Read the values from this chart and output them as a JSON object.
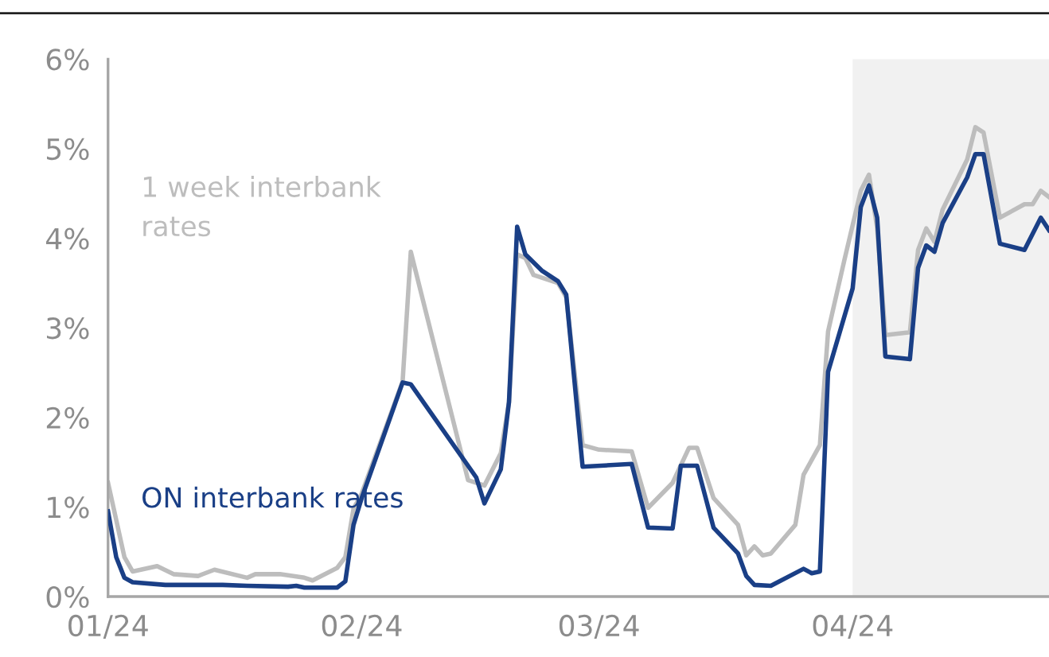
{
  "chart_data": {
    "type": "line",
    "xlim": [
      "2024-01-01",
      "2024-04-25"
    ],
    "ylim": [
      0,
      6
    ],
    "xticks": [
      {
        "value": "2024-01-01",
        "label": "01/24"
      },
      {
        "value": "2024-02-01",
        "label": "02/24"
      },
      {
        "value": "2024-03-01",
        "label": "03/24"
      },
      {
        "value": "2024-04-01",
        "label": "04/24"
      }
    ],
    "yticks": [
      {
        "value": 0,
        "label": "0%"
      },
      {
        "value": 1,
        "label": "1%"
      },
      {
        "value": 2,
        "label": "2%"
      },
      {
        "value": 3,
        "label": "3%"
      },
      {
        "value": 4,
        "label": "4%"
      },
      {
        "value": 5,
        "label": "5%"
      },
      {
        "value": 6,
        "label": "6%"
      }
    ],
    "grid": false,
    "legend": false,
    "marker": "none",
    "line_style": "solid",
    "bands": [
      {
        "axis": "x",
        "from": "2024-04-01",
        "to": "2024-04-25",
        "color": "#f1f1f1"
      }
    ],
    "series": [
      {
        "name": "1 week interbank rates",
        "color": "#bdbdbd",
        "x": [
          "2024-01-01",
          "2024-01-03",
          "2024-01-04",
          "2024-01-07",
          "2024-01-09",
          "2024-01-12",
          "2024-01-14",
          "2024-01-18",
          "2024-01-19",
          "2024-01-22",
          "2024-01-25",
          "2024-01-26",
          "2024-01-29",
          "2024-01-30",
          "2024-01-31",
          "2024-02-01",
          "2024-02-06",
          "2024-02-07",
          "2024-02-14",
          "2024-02-16",
          "2024-02-18",
          "2024-02-19",
          "2024-02-20",
          "2024-02-21",
          "2024-02-22",
          "2024-02-25",
          "2024-02-26",
          "2024-02-28",
          "2024-03-01",
          "2024-03-05",
          "2024-03-07",
          "2024-03-10",
          "2024-03-12",
          "2024-03-13",
          "2024-03-15",
          "2024-03-18",
          "2024-03-19",
          "2024-03-20",
          "2024-03-21",
          "2024-03-22",
          "2024-03-25",
          "2024-03-26",
          "2024-03-28",
          "2024-03-29",
          "2024-03-31",
          "2024-04-02",
          "2024-04-03",
          "2024-04-04",
          "2024-04-05",
          "2024-04-08",
          "2024-04-09",
          "2024-04-10",
          "2024-04-11",
          "2024-04-12",
          "2024-04-15",
          "2024-04-16",
          "2024-04-17",
          "2024-04-19",
          "2024-04-22",
          "2024-04-23",
          "2024-04-24",
          "2024-04-25"
        ],
        "values": [
          1.27,
          0.44,
          0.28,
          0.34,
          0.25,
          0.23,
          0.3,
          0.21,
          0.25,
          0.25,
          0.21,
          0.18,
          0.32,
          0.44,
          0.98,
          1.15,
          2.4,
          3.85,
          1.3,
          1.24,
          1.6,
          2.17,
          3.82,
          3.78,
          3.59,
          3.5,
          3.34,
          1.69,
          1.64,
          1.62,
          0.99,
          1.27,
          1.66,
          1.66,
          1.1,
          0.8,
          0.46,
          0.56,
          0.46,
          0.48,
          0.8,
          1.36,
          1.69,
          2.96,
          3.76,
          4.53,
          4.71,
          4.11,
          2.92,
          2.95,
          3.87,
          4.11,
          3.96,
          4.32,
          4.88,
          5.24,
          5.18,
          4.23,
          4.38,
          4.38,
          4.53,
          4.46
        ]
      },
      {
        "name": "ON interbank rates",
        "color": "#1a3f86",
        "x": [
          "2024-01-01",
          "2024-01-02",
          "2024-01-03",
          "2024-01-04",
          "2024-01-08",
          "2024-01-15",
          "2024-01-18",
          "2024-01-23",
          "2024-01-24",
          "2024-01-25",
          "2024-01-29",
          "2024-01-30",
          "2024-01-31",
          "2024-02-01",
          "2024-02-06",
          "2024-02-07",
          "2024-02-15",
          "2024-02-16",
          "2024-02-18",
          "2024-02-19",
          "2024-02-20",
          "2024-02-21",
          "2024-02-23",
          "2024-02-25",
          "2024-02-26",
          "2024-02-28",
          "2024-03-05",
          "2024-03-07",
          "2024-03-10",
          "2024-03-11",
          "2024-03-13",
          "2024-03-15",
          "2024-03-18",
          "2024-03-19",
          "2024-03-20",
          "2024-03-22",
          "2024-03-26",
          "2024-03-27",
          "2024-03-28",
          "2024-03-29",
          "2024-04-01",
          "2024-04-02",
          "2024-04-03",
          "2024-04-04",
          "2024-04-05",
          "2024-04-08",
          "2024-04-09",
          "2024-04-10",
          "2024-04-11",
          "2024-04-12",
          "2024-04-15",
          "2024-04-16",
          "2024-04-17",
          "2024-04-19",
          "2024-04-22",
          "2024-04-24",
          "2024-04-25"
        ],
        "values": [
          0.95,
          0.44,
          0.21,
          0.16,
          0.13,
          0.13,
          0.12,
          0.11,
          0.12,
          0.1,
          0.1,
          0.17,
          0.8,
          1.1,
          2.39,
          2.37,
          1.33,
          1.04,
          1.42,
          2.17,
          4.13,
          3.82,
          3.64,
          3.52,
          3.37,
          1.45,
          1.48,
          0.77,
          0.76,
          1.46,
          1.46,
          0.77,
          0.48,
          0.23,
          0.13,
          0.12,
          0.31,
          0.26,
          0.28,
          2.51,
          3.44,
          4.35,
          4.59,
          4.23,
          2.68,
          2.65,
          3.67,
          3.92,
          3.85,
          4.17,
          4.68,
          4.94,
          4.94,
          3.94,
          3.87,
          4.23,
          4.09
        ]
      }
    ]
  }
}
